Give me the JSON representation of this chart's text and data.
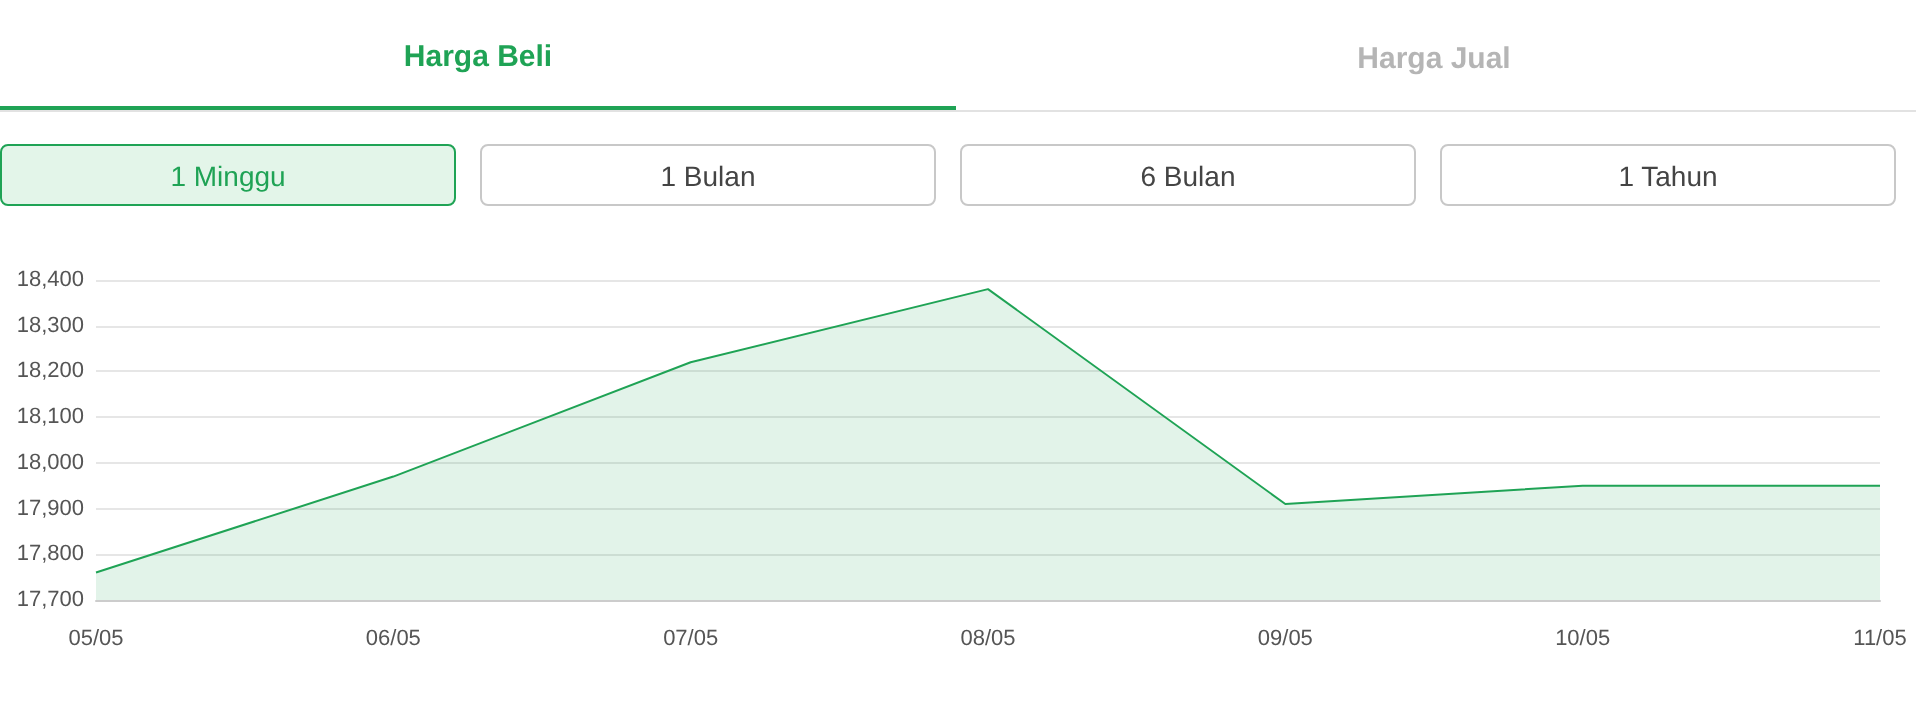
{
  "chart_data": {
    "type": "area",
    "categories": [
      "05/05",
      "06/05",
      "07/05",
      "08/05",
      "09/05",
      "10/05",
      "11/05"
    ],
    "series": [
      {
        "color": "#1fa355",
        "values": [
          17760,
          17970,
          18220,
          18380,
          17910,
          17950,
          17950
        ]
      }
    ],
    "ylim": [
      17700,
      18400
    ],
    "yticks": [
      {
        "value": 17700,
        "label": "17,700"
      },
      {
        "value": 17800,
        "label": "17,800"
      },
      {
        "value": 17900,
        "label": "17,900"
      },
      {
        "value": 18000,
        "label": "18,000"
      },
      {
        "value": 18100,
        "label": "18,100"
      },
      {
        "value": 18200,
        "label": "18,200"
      },
      {
        "value": 18300,
        "label": "18,300"
      },
      {
        "value": 18400,
        "label": "18,400"
      }
    ],
    "grid": "y",
    "marker": "none",
    "annotations": [
      "Harga Beli",
      "Harga Jual",
      "1 Minggu",
      "1 Bulan",
      "6 Bulan",
      "1 Tahun"
    ]
  }
}
